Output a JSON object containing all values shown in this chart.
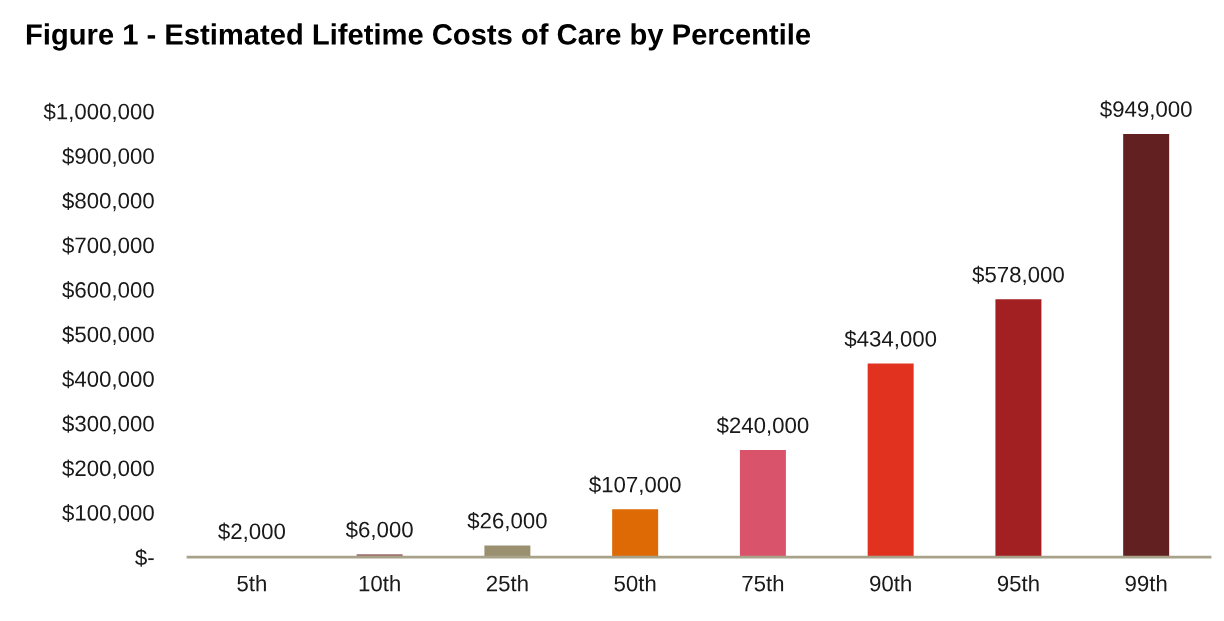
{
  "chart_data": {
    "type": "bar",
    "title": "Figure 1 - Estimated Lifetime Costs of Care by Percentile",
    "categories": [
      "5th",
      "10th",
      "25th",
      "50th",
      "75th",
      "90th",
      "95th",
      "99th"
    ],
    "values": [
      2000,
      6000,
      26000,
      107000,
      240000,
      434000,
      578000,
      949000
    ],
    "colors": [
      "#8c7b6b",
      "#9e6a6a",
      "#9a9070",
      "#dd6a05",
      "#d9536b",
      "#e0321f",
      "#a21f22",
      "#622120"
    ],
    "value_labels": [
      "$2,000",
      "$6,000",
      "$26,000",
      "$107,000",
      "$240,000",
      "$434,000",
      "$578,000",
      "$949,000"
    ],
    "ylim": [
      0,
      1000000
    ],
    "yticks": [
      {
        "value": 0,
        "label": "$-"
      },
      {
        "value": 100000,
        "label": "$100,000"
      },
      {
        "value": 200000,
        "label": "$200,000"
      },
      {
        "value": 300000,
        "label": "$300,000"
      },
      {
        "value": 400000,
        "label": "$400,000"
      },
      {
        "value": 500000,
        "label": "$500,000"
      },
      {
        "value": 600000,
        "label": "$600,000"
      },
      {
        "value": 700000,
        "label": "$700,000"
      },
      {
        "value": 800000,
        "label": "$800,000"
      },
      {
        "value": 900000,
        "label": "$900,000"
      },
      {
        "value": 1000000,
        "label": "$1,000,000"
      }
    ]
  }
}
